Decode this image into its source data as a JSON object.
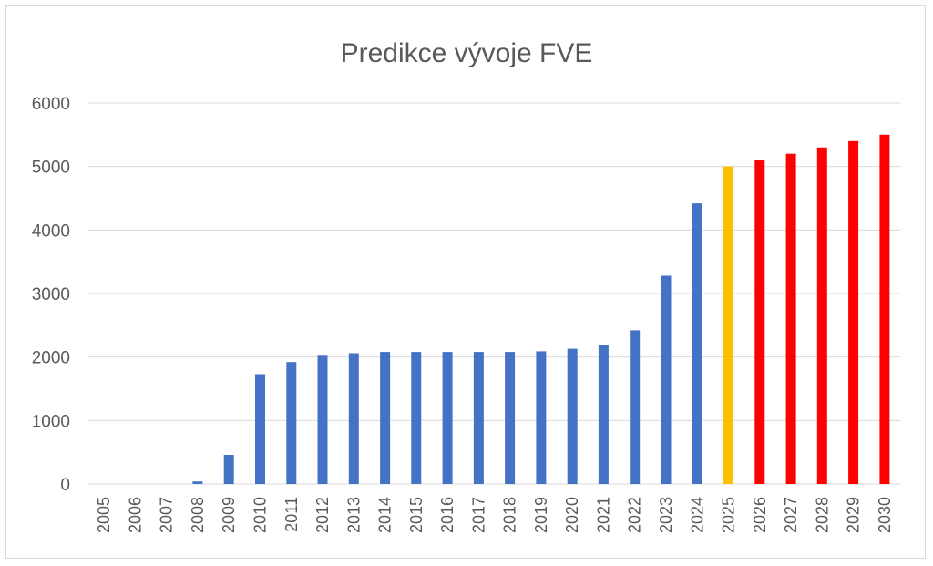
{
  "chart_data": {
    "type": "bar",
    "title": "Predikce vývoje FVE",
    "xlabel": "",
    "ylabel": "",
    "ylim": [
      0,
      6000
    ],
    "yticks": [
      0,
      1000,
      2000,
      3000,
      4000,
      5000,
      6000
    ],
    "grid": true,
    "legend": "none",
    "categories": [
      "2005",
      "2006",
      "2007",
      "2008",
      "2009",
      "2010",
      "2011",
      "2012",
      "2013",
      "2014",
      "2015",
      "2016",
      "2017",
      "2018",
      "2019",
      "2020",
      "2021",
      "2022",
      "2023",
      "2024",
      "2025",
      "2026",
      "2027",
      "2028",
      "2029",
      "2030"
    ],
    "values": [
      0,
      0,
      0,
      40,
      460,
      1730,
      1920,
      2020,
      2060,
      2080,
      2080,
      2080,
      2080,
      2080,
      2090,
      2130,
      2190,
      2420,
      3280,
      4420,
      5000,
      5100,
      5200,
      5300,
      5400,
      5500
    ],
    "bar_colors": [
      "#4472C4",
      "#4472C4",
      "#4472C4",
      "#4472C4",
      "#4472C4",
      "#4472C4",
      "#4472C4",
      "#4472C4",
      "#4472C4",
      "#4472C4",
      "#4472C4",
      "#4472C4",
      "#4472C4",
      "#4472C4",
      "#4472C4",
      "#4472C4",
      "#4472C4",
      "#4472C4",
      "#4472C4",
      "#4472C4",
      "#FFC000",
      "#FF0000",
      "#FF0000",
      "#FF0000",
      "#FF0000",
      "#FF0000"
    ]
  }
}
